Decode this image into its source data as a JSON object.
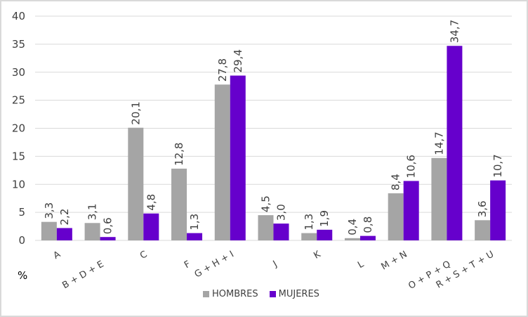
{
  "chart_data": {
    "type": "bar",
    "title": "",
    "xlabel": "",
    "ylabel": "%",
    "ylim": [
      0,
      40
    ],
    "yticks": [
      0,
      5,
      10,
      15,
      20,
      25,
      30,
      35,
      40
    ],
    "grid": true,
    "legend_position": "bottom",
    "categories": [
      "A",
      "B + D + E",
      "C",
      "F",
      "G + H + I",
      "J",
      "K",
      "L",
      "M + N",
      "O + P + Q",
      "R + S + T + U"
    ],
    "series": [
      {
        "name": "HOMBRES",
        "color": "#A5A5A5",
        "values": [
          3.3,
          3.1,
          20.1,
          12.8,
          27.8,
          4.5,
          1.3,
          0.4,
          8.4,
          14.7,
          3.6
        ],
        "labels": [
          "3,3",
          "3,1",
          "20,1",
          "12,8",
          "27,8",
          "4,5",
          "1,3",
          "0,4",
          "8,4",
          "14,7",
          "3,6"
        ]
      },
      {
        "name": "MUJERES",
        "color": "#6600CC",
        "values": [
          2.2,
          0.6,
          4.8,
          1.3,
          29.4,
          3.0,
          1.9,
          0.8,
          10.6,
          34.7,
          10.7
        ],
        "labels": [
          "2,2",
          "0,6",
          "4,8",
          "1,3",
          "29,4",
          "3,0",
          "1,9",
          "0,8",
          "10,6",
          "34,7",
          "10,7"
        ]
      }
    ]
  },
  "axis": {
    "unit_label": "%"
  },
  "legend": [
    {
      "label": "HOMBRES",
      "color": "#A5A5A5"
    },
    {
      "label": "MUJERES",
      "color": "#6600CC"
    }
  ]
}
